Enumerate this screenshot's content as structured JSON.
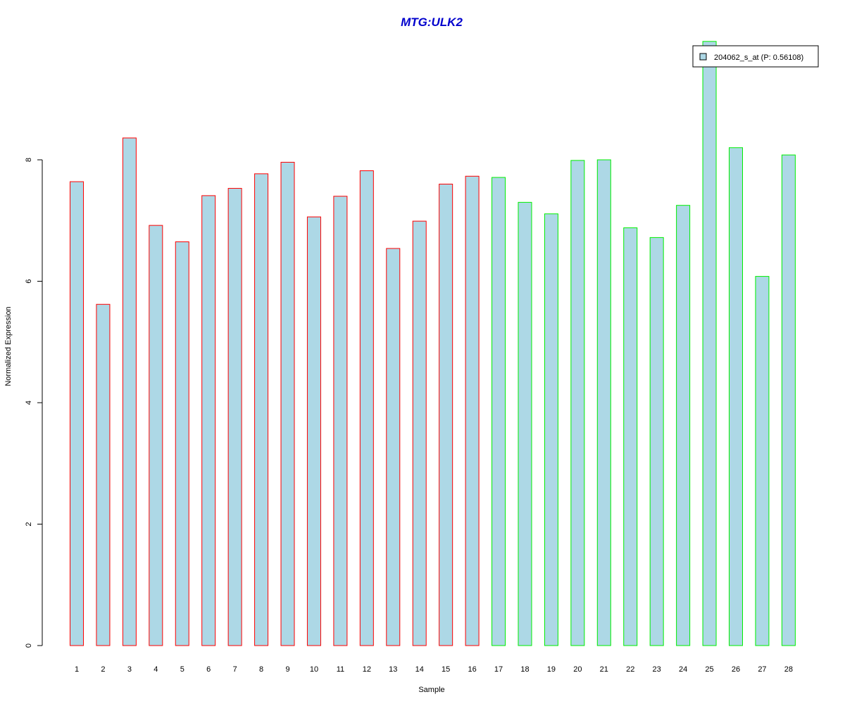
{
  "chart_data": {
    "type": "bar",
    "title": "MTG:ULK2",
    "xlabel": "Sample",
    "ylabel": "Normalized Expression",
    "ylim": [
      0,
      10
    ],
    "yticks": [
      0,
      2,
      4,
      6,
      8
    ],
    "ytick_labels": [
      "0",
      "2",
      "4",
      "6",
      "8"
    ],
    "categories": [
      "1",
      "2",
      "3",
      "4",
      "5",
      "6",
      "7",
      "8",
      "9",
      "10",
      "11",
      "12",
      "13",
      "14",
      "15",
      "16",
      "17",
      "18",
      "19",
      "20",
      "21",
      "22",
      "23",
      "24",
      "25",
      "26",
      "27",
      "28"
    ],
    "values": [
      7.64,
      5.62,
      8.36,
      6.92,
      6.65,
      7.41,
      7.53,
      7.77,
      7.96,
      7.06,
      7.4,
      7.82,
      6.54,
      6.99,
      7.6,
      7.73,
      7.71,
      7.3,
      7.11,
      7.99,
      8.0,
      6.88,
      6.72,
      7.25,
      9.95,
      8.2,
      6.08,
      8.08
    ],
    "groups": [
      1,
      1,
      1,
      1,
      1,
      1,
      1,
      1,
      1,
      1,
      1,
      1,
      1,
      1,
      1,
      1,
      2,
      2,
      2,
      2,
      2,
      2,
      2,
      2,
      2,
      2,
      2,
      2
    ],
    "group_colors": [
      "#ff0000",
      "#00ee00"
    ],
    "fill_color": "#add8e6",
    "title_color": "#0000cd",
    "grid": false,
    "legend": {
      "placement": "top-right",
      "label": "204062_s_at (P: 0.56108)"
    }
  }
}
